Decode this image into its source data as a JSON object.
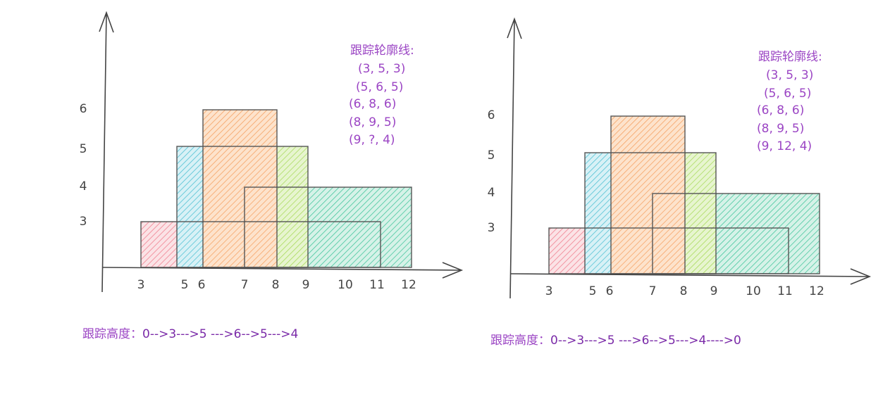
{
  "panels": [
    {
      "y_labels": [
        "6",
        "5",
        "4",
        "3"
      ],
      "x_labels": [
        "3",
        "5",
        "6",
        "7",
        "8",
        "9",
        "10",
        "11",
        "12"
      ],
      "contour_title": "跟踪轮廓线:",
      "contour": [
        "(3, 5, 3)",
        "(5, 6, 5)",
        "(6, 8, 6)",
        "(8, 9, 5)",
        "(9, ?, 4)"
      ],
      "trace_label": "跟踪高度：",
      "trace": "0-->3--->5 --->6-->5--->4"
    },
    {
      "y_labels": [
        "6",
        "5",
        "4",
        "3"
      ],
      "x_labels": [
        "3",
        "5",
        "6",
        "7",
        "8",
        "9",
        "10",
        "11",
        "12"
      ],
      "contour_title": "跟踪轮廓线:",
      "contour": [
        "(3, 5, 3)",
        "(5, 6, 5)",
        "(6, 8, 6)",
        "(8, 9, 5)",
        "(9, 12, 4)"
      ],
      "trace_label": "跟踪高度：",
      "trace": "0-->3--->5 --->6-->5--->4---->0"
    }
  ]
}
